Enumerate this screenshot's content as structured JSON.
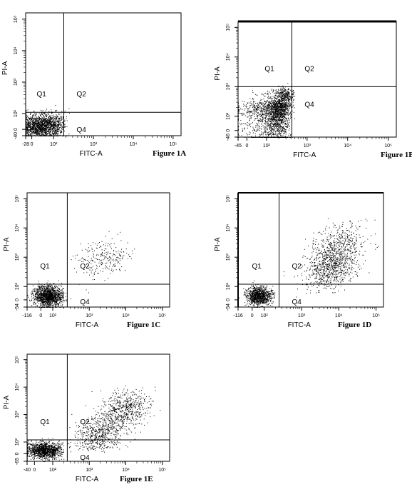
{
  "chart_data": [
    {
      "id": "1A",
      "type": "scatter",
      "figure_label": "Figure 1A",
      "xlabel": "FITC-A",
      "ylabel": "PI-A",
      "x_ticks": [
        "-28",
        "0",
        "10²",
        "10³",
        "10⁴",
        "10⁵"
      ],
      "y_ticks": [
        "-40",
        "0",
        "10²",
        "10³",
        "10⁴",
        "10⁵"
      ],
      "quadrants": [
        "Q1",
        "Q2",
        "Q4"
      ],
      "gate_x": 180,
      "gate_y": 110,
      "populations": [
        {
          "cx": 40,
          "cy": 20,
          "sx": 55,
          "sy": 35,
          "n": 1600
        },
        {
          "cx": 90,
          "cy": 60,
          "sx": 60,
          "sy": 45,
          "n": 200
        }
      ]
    },
    {
      "id": "1B",
      "type": "scatter",
      "figure_label": "Figure 1B",
      "xlabel": "FITC-A",
      "ylabel": "PI-A",
      "x_ticks": [
        "-45",
        "0",
        "10²",
        "10³",
        "10⁴",
        "10⁵"
      ],
      "y_ticks": [
        "-46",
        "0",
        "10²",
        "10³",
        "10⁴",
        "10⁵"
      ],
      "quadrants": [
        "Q1",
        "Q2",
        "Q4"
      ],
      "gate_x": 420,
      "gate_y": 1000,
      "populations": [
        {
          "cx": 150,
          "cy": 120,
          "sx": 90,
          "sy": 110,
          "n": 1800
        },
        {
          "cx": 260,
          "cy": 450,
          "sx": 90,
          "sy": 220,
          "n": 500
        }
      ]
    },
    {
      "id": "1C",
      "type": "scatter",
      "figure_label": "Figure 1C",
      "xlabel": "FITC-A",
      "ylabel": "PI-A",
      "x_ticks": [
        "-116",
        "0",
        "10²",
        "10³",
        "10⁴",
        "10⁵"
      ],
      "y_ticks": [
        "-54",
        "0",
        "10²",
        "10³",
        "10⁴",
        "10⁵"
      ],
      "quadrants": [
        "Q1",
        "Q2",
        "Q4"
      ],
      "gate_x": 250,
      "gate_y": 120,
      "populations": [
        {
          "cx": 60,
          "cy": 30,
          "sx": 60,
          "sy": 40,
          "n": 1500
        },
        {
          "cx": 2500,
          "cy": 900,
          "sx": 3500,
          "sy": 1200,
          "n": 250
        }
      ]
    },
    {
      "id": "1D",
      "type": "scatter",
      "figure_label": "Figure 1D",
      "xlabel": "FITC-A",
      "ylabel": "PI-A",
      "x_ticks": [
        "-116",
        "0",
        "10²",
        "10³",
        "10⁴",
        "10⁵"
      ],
      "y_ticks": [
        "-54",
        "0",
        "10²",
        "10³",
        "10⁴",
        "10⁵"
      ],
      "quadrants": [
        "Q1",
        "Q2",
        "Q4"
      ],
      "gate_x": 250,
      "gate_y": 120,
      "populations": [
        {
          "cx": 50,
          "cy": 30,
          "sx": 50,
          "sy": 35,
          "n": 1100
        },
        {
          "cx": 6000,
          "cy": 400,
          "sx": 5000,
          "sy": 500,
          "n": 700
        },
        {
          "cx": 10000,
          "cy": 2500,
          "sx": 8000,
          "sy": 2500,
          "n": 500
        }
      ]
    },
    {
      "id": "1E",
      "type": "scatter",
      "figure_label": "Figure 1E",
      "xlabel": "FITC-A",
      "ylabel": "PI-A",
      "x_ticks": [
        "-40",
        "0",
        "10²",
        "10³",
        "10⁴",
        "10⁵"
      ],
      "y_ticks": [
        "-65",
        "0",
        "10²",
        "10³",
        "10⁴",
        "10⁵"
      ],
      "quadrants": [
        "Q1",
        "Q2",
        "Q4"
      ],
      "gate_x": 250,
      "gate_y": 120,
      "populations": [
        {
          "cx": 50,
          "cy": 30,
          "sx": 50,
          "sy": 35,
          "n": 1300
        },
        {
          "cx": 2000,
          "cy": 200,
          "sx": 1800,
          "sy": 200,
          "n": 600
        },
        {
          "cx": 9000,
          "cy": 1500,
          "sx": 7000,
          "sy": 1500,
          "n": 600
        }
      ]
    }
  ]
}
